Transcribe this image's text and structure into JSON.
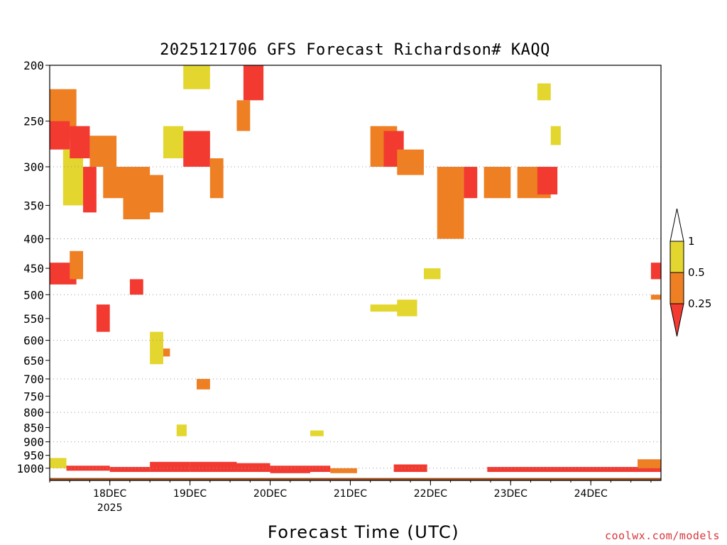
{
  "chart_data": {
    "type": "heatmap",
    "title": "2025121706 GFS Forecast Richardson# KAQQ",
    "xlabel": "Forecast Time (UTC)",
    "ylabel": "",
    "credit": "coolwx.com/models",
    "y_scale": "log-pressure",
    "ylim_hPa": [
      1050,
      200
    ],
    "xlim_hours_utc": [
      "2025-12-17 06Z",
      "2025-12-24 21Z"
    ],
    "y_ticks": [
      200,
      250,
      300,
      350,
      400,
      450,
      500,
      550,
      600,
      650,
      700,
      750,
      800,
      850,
      900,
      950,
      1000
    ],
    "gridlines_hPa": [
      300,
      400,
      500,
      600,
      700,
      800,
      900,
      1000
    ],
    "x_ticks": [
      {
        "label": "18DEC",
        "sublabel": "2025",
        "hour": 18
      },
      {
        "label": "19DEC",
        "sublabel": "",
        "hour": 42
      },
      {
        "label": "20DEC",
        "sublabel": "",
        "hour": 66
      },
      {
        "label": "21DEC",
        "sublabel": "",
        "hour": 90
      },
      {
        "label": "22DEC",
        "sublabel": "",
        "hour": 114
      },
      {
        "label": "23DEC",
        "sublabel": "",
        "hour": 138
      },
      {
        "label": "24DEC",
        "sublabel": "",
        "hour": 162
      }
    ],
    "x_max_hour": 183,
    "legend": {
      "orientation": "vertical",
      "position": "right",
      "levels": [
        {
          "label": "1",
          "color": "#ffffff"
        },
        {
          "label": "0.5",
          "color": "#e3d62e"
        },
        {
          "label": "0.25",
          "color": "#ee7f22"
        },
        {
          "label": "",
          "color": "#f23a31"
        }
      ]
    },
    "colors": {
      "yellow": "#e3d62e",
      "orange": "#ee7f22",
      "red": "#f23a31",
      "ground": "#9b4e1c"
    },
    "ground_pressure_hPa": 1040,
    "surface_layer": [
      {
        "h0": 0,
        "h1": 5,
        "p0": 960,
        "p1": 1000,
        "c": "yellow"
      },
      {
        "h0": 5,
        "h1": 18,
        "p0": 990,
        "p1": 1010,
        "c": "red"
      },
      {
        "h0": 18,
        "h1": 30,
        "p0": 995,
        "p1": 1015,
        "c": "red"
      },
      {
        "h0": 30,
        "h1": 42,
        "p0": 975,
        "p1": 1015,
        "c": "red"
      },
      {
        "h0": 42,
        "h1": 56,
        "p0": 975,
        "p1": 1015,
        "c": "red"
      },
      {
        "h0": 56,
        "h1": 66,
        "p0": 980,
        "p1": 1015,
        "c": "red"
      },
      {
        "h0": 66,
        "h1": 78,
        "p0": 990,
        "p1": 1020,
        "c": "red"
      },
      {
        "h0": 78,
        "h1": 84,
        "p0": 990,
        "p1": 1015,
        "c": "red"
      },
      {
        "h0": 84,
        "h1": 92,
        "p0": 1000,
        "p1": 1020,
        "c": "orange"
      },
      {
        "h0": 103,
        "h1": 113,
        "p0": 985,
        "p1": 1015,
        "c": "red"
      },
      {
        "h0": 131,
        "h1": 183,
        "p0": 995,
        "p1": 1015,
        "c": "red"
      },
      {
        "h0": 176,
        "h1": 183,
        "p0": 965,
        "p1": 1000,
        "c": "orange"
      }
    ],
    "cells": [
      {
        "h0": 0,
        "h1": 8,
        "p0": 220,
        "p1": 270,
        "c": "orange"
      },
      {
        "h0": 0,
        "h1": 6,
        "p0": 250,
        "p1": 280,
        "c": "red"
      },
      {
        "h0": 4,
        "h1": 10,
        "p0": 280,
        "p1": 350,
        "c": "yellow"
      },
      {
        "h0": 6,
        "h1": 12,
        "p0": 255,
        "p1": 290,
        "c": "red"
      },
      {
        "h0": 10,
        "h1": 14,
        "p0": 300,
        "p1": 360,
        "c": "red"
      },
      {
        "h0": 12,
        "h1": 20,
        "p0": 265,
        "p1": 300,
        "c": "orange"
      },
      {
        "h0": 16,
        "h1": 22,
        "p0": 300,
        "p1": 340,
        "c": "orange"
      },
      {
        "h0": 22,
        "h1": 30,
        "p0": 300,
        "p1": 370,
        "c": "orange"
      },
      {
        "h0": 26,
        "h1": 34,
        "p0": 310,
        "p1": 360,
        "c": "orange"
      },
      {
        "h0": 34,
        "h1": 40,
        "p0": 255,
        "p1": 290,
        "c": "yellow"
      },
      {
        "h0": 40,
        "h1": 48,
        "p0": 260,
        "p1": 300,
        "c": "red"
      },
      {
        "h0": 48,
        "h1": 52,
        "p0": 290,
        "p1": 340,
        "c": "orange"
      },
      {
        "h0": 40,
        "h1": 48,
        "p0": 200,
        "p1": 220,
        "c": "yellow"
      },
      {
        "h0": 58,
        "h1": 64,
        "p0": 200,
        "p1": 230,
        "c": "red"
      },
      {
        "h0": 56,
        "h1": 60,
        "p0": 230,
        "p1": 260,
        "c": "orange"
      },
      {
        "h0": 0,
        "h1": 8,
        "p0": 440,
        "p1": 480,
        "c": "red"
      },
      {
        "h0": 6,
        "h1": 10,
        "p0": 420,
        "p1": 470,
        "c": "orange"
      },
      {
        "h0": 14,
        "h1": 18,
        "p0": 520,
        "p1": 580,
        "c": "red"
      },
      {
        "h0": 24,
        "h1": 28,
        "p0": 470,
        "p1": 500,
        "c": "red"
      },
      {
        "h0": 30,
        "h1": 34,
        "p0": 580,
        "p1": 660,
        "c": "yellow"
      },
      {
        "h0": 34,
        "h1": 36,
        "p0": 620,
        "p1": 640,
        "c": "orange"
      },
      {
        "h0": 96,
        "h1": 104,
        "p0": 255,
        "p1": 300,
        "c": "orange"
      },
      {
        "h0": 100,
        "h1": 106,
        "p0": 260,
        "p1": 300,
        "c": "red"
      },
      {
        "h0": 104,
        "h1": 112,
        "p0": 280,
        "p1": 310,
        "c": "orange"
      },
      {
        "h0": 116,
        "h1": 124,
        "p0": 300,
        "p1": 400,
        "c": "orange"
      },
      {
        "h0": 124,
        "h1": 128,
        "p0": 300,
        "p1": 340,
        "c": "red"
      },
      {
        "h0": 130,
        "h1": 138,
        "p0": 300,
        "p1": 340,
        "c": "orange"
      },
      {
        "h0": 140,
        "h1": 150,
        "p0": 300,
        "p1": 340,
        "c": "orange"
      },
      {
        "h0": 146,
        "h1": 152,
        "p0": 300,
        "p1": 335,
        "c": "red"
      },
      {
        "h0": 146,
        "h1": 150,
        "p0": 215,
        "p1": 230,
        "c": "yellow"
      },
      {
        "h0": 150,
        "h1": 153,
        "p0": 255,
        "p1": 275,
        "c": "yellow"
      },
      {
        "h0": 96,
        "h1": 106,
        "p0": 520,
        "p1": 535,
        "c": "yellow"
      },
      {
        "h0": 104,
        "h1": 110,
        "p0": 510,
        "p1": 545,
        "c": "yellow"
      },
      {
        "h0": 112,
        "h1": 117,
        "p0": 450,
        "p1": 470,
        "c": "yellow"
      },
      {
        "h0": 180,
        "h1": 183,
        "p0": 440,
        "p1": 470,
        "c": "red"
      },
      {
        "h0": 180,
        "h1": 183,
        "p0": 500,
        "p1": 510,
        "c": "orange"
      },
      {
        "h0": 44,
        "h1": 48,
        "p0": 700,
        "p1": 730,
        "c": "orange"
      },
      {
        "h0": 38,
        "h1": 41,
        "p0": 840,
        "p1": 880,
        "c": "yellow"
      },
      {
        "h0": 78,
        "h1": 82,
        "p0": 860,
        "p1": 880,
        "c": "yellow"
      }
    ]
  }
}
